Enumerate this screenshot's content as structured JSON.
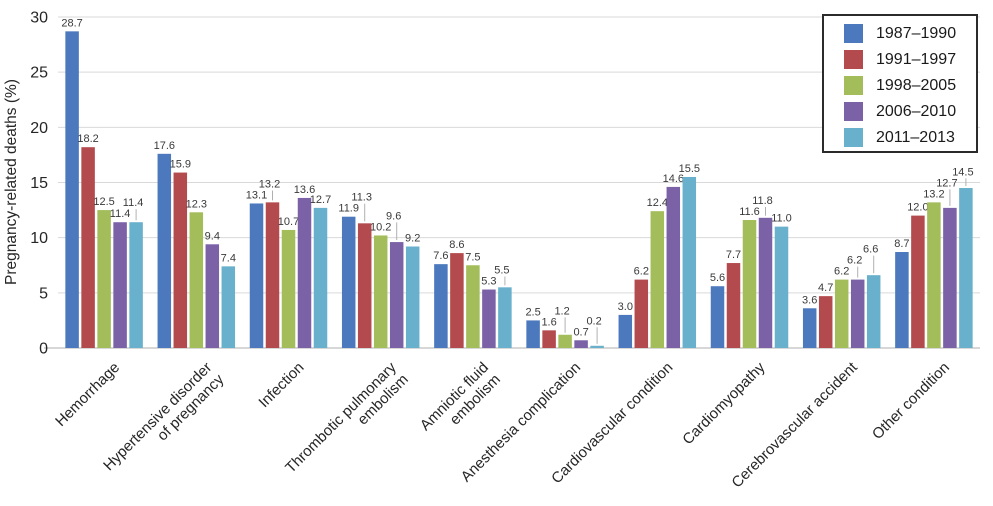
{
  "chart_data": {
    "type": "bar",
    "title": "",
    "xlabel": "",
    "ylabel": "Pregnancy-related deaths (%)",
    "ylim": [
      0,
      30
    ],
    "yticks": [
      0,
      5,
      10,
      15,
      20,
      25,
      30
    ],
    "grid": true,
    "legend_position": "top-right",
    "value_labels_decimals": 1,
    "categories": [
      "Hemorrhage",
      "Hypertensive disorder\nof pregnancy",
      "Infection",
      "Thrombotic pulmonary\nembolism",
      "Amniotic fluid\nembolism",
      "Anesthesia complication",
      "Cardiovascular condition",
      "Cardiomyopathy",
      "Cerebrovascular accident",
      "Other condition"
    ],
    "series": [
      {
        "name": "1987–1990",
        "color": "#4C79BD",
        "values": [
          28.7,
          17.6,
          13.1,
          11.9,
          7.6,
          2.5,
          3.0,
          5.6,
          3.6,
          8.7
        ]
      },
      {
        "name": "1991–1997",
        "color": "#B34A4D",
        "values": [
          18.2,
          15.9,
          13.2,
          11.3,
          8.6,
          1.6,
          6.2,
          7.7,
          4.7,
          12.0
        ]
      },
      {
        "name": "1998–2005",
        "color": "#A3BD5B",
        "values": [
          12.5,
          12.3,
          10.7,
          10.2,
          7.5,
          1.2,
          12.4,
          11.6,
          6.2,
          13.2
        ]
      },
      {
        "name": "2006–2010",
        "color": "#7B62A6",
        "values": [
          11.4,
          9.4,
          13.6,
          9.6,
          5.3,
          0.7,
          14.6,
          11.8,
          6.2,
          12.7
        ]
      },
      {
        "name": "2011–2013",
        "color": "#68B0CB",
        "values": [
          11.4,
          7.4,
          12.7,
          9.2,
          5.5,
          0.2,
          15.5,
          11.0,
          6.6,
          14.5
        ]
      }
    ],
    "colors": {
      "grid": "#d9d9d9",
      "baseline": "#bfbfbf",
      "leader": "#b0b0b0",
      "tick_text": "#262626",
      "value_text": "#3a3a3a",
      "category_text": "#262626"
    }
  }
}
